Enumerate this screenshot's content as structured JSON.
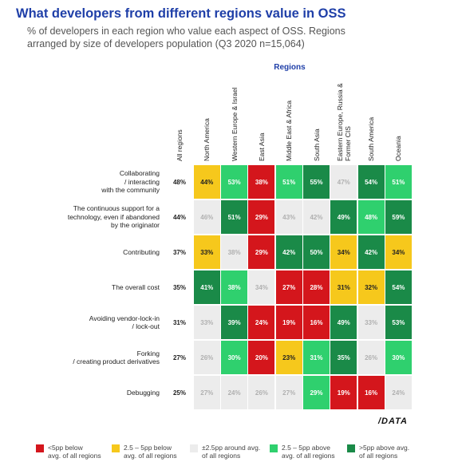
{
  "chart_data": {
    "type": "heatmap",
    "title": "What developers from different regions value in OSS",
    "subtitle": "% of developers in each region who value each aspect of OSS. Regions\narranged by size of developers population (Q3 2020 n=15,064)",
    "x_label": "Regions",
    "categories": [
      "All regions",
      "North America",
      "Western Europe & Israel",
      "East Asia",
      "Middle East & Africa",
      "South Asia",
      "Eastern Europe, Russia &\nFormer CIS",
      "South America",
      "Oceania"
    ],
    "series": [
      {
        "name": "Collaborating\n/ interacting\nwith the community",
        "values": [
          48,
          44,
          53,
          38,
          51,
          55,
          47,
          54,
          51
        ],
        "value_labels": [
          "48%",
          "44%",
          "53%",
          "38%",
          "51%",
          "55%",
          "47%",
          "54%",
          "51%"
        ],
        "colors": [
          "#ffffff",
          "#f6c81c",
          "#2fd06e",
          "#d4161c",
          "#2fd06e",
          "#1a8a48",
          "#ececec",
          "#1a8a48",
          "#2fd06e"
        ]
      },
      {
        "name": "The continuous support for a\ntechnology, even if abandoned\nby the originator",
        "values": [
          44,
          46,
          51,
          29,
          43,
          42,
          49,
          48,
          59
        ],
        "value_labels": [
          "44%",
          "46%",
          "51%",
          "29%",
          "43%",
          "42%",
          "49%",
          "48%",
          "59%"
        ],
        "colors": [
          "#ffffff",
          "#ececec",
          "#1a8a48",
          "#d4161c",
          "#ececec",
          "#ececec",
          "#1a8a48",
          "#2fd06e",
          "#1a8a48"
        ]
      },
      {
        "name": "Contributing",
        "values": [
          37,
          33,
          38,
          29,
          42,
          50,
          34,
          42,
          34
        ],
        "value_labels": [
          "37%",
          "33%",
          "38%",
          "29%",
          "42%",
          "50%",
          "34%",
          "42%",
          "34%"
        ],
        "colors": [
          "#ffffff",
          "#f6c81c",
          "#ececec",
          "#d4161c",
          "#1a8a48",
          "#1a8a48",
          "#f6c81c",
          "#1a8a48",
          "#f6c81c"
        ]
      },
      {
        "name": "The overall cost",
        "values": [
          35,
          41,
          38,
          34,
          27,
          28,
          31,
          32,
          54
        ],
        "value_labels": [
          "35%",
          "41%",
          "38%",
          "34%",
          "27%",
          "28%",
          "31%",
          "32%",
          "54%"
        ],
        "colors": [
          "#ffffff",
          "#1a8a48",
          "#2fd06e",
          "#ececec",
          "#d4161c",
          "#d4161c",
          "#f6c81c",
          "#f6c81c",
          "#1a8a48"
        ]
      },
      {
        "name": "Avoiding vendor-lock-in\n/ lock-out",
        "values": [
          31,
          33,
          39,
          24,
          19,
          16,
          49,
          33,
          53
        ],
        "value_labels": [
          "31%",
          "33%",
          "39%",
          "24%",
          "19%",
          "16%",
          "49%",
          "33%",
          "53%"
        ],
        "colors": [
          "#ffffff",
          "#ececec",
          "#1a8a48",
          "#d4161c",
          "#d4161c",
          "#d4161c",
          "#1a8a48",
          "#ececec",
          "#1a8a48"
        ]
      },
      {
        "name": "Forking\n/ creating product derivatives",
        "values": [
          27,
          26,
          30,
          20,
          23,
          31,
          35,
          26,
          30
        ],
        "value_labels": [
          "27%",
          "26%",
          "30%",
          "20%",
          "23%",
          "31%",
          "35%",
          "26%",
          "30%"
        ],
        "colors": [
          "#ffffff",
          "#ececec",
          "#2fd06e",
          "#d4161c",
          "#f6c81c",
          "#2fd06e",
          "#1a8a48",
          "#ececec",
          "#2fd06e"
        ]
      },
      {
        "name": "Debugging",
        "values": [
          25,
          27,
          24,
          26,
          27,
          29,
          19,
          16,
          24
        ],
        "value_labels": [
          "25%",
          "27%",
          "24%",
          "26%",
          "27%",
          "29%",
          "19%",
          "16%",
          "24%"
        ],
        "colors": [
          "#ffffff",
          "#ececec",
          "#ececec",
          "#ececec",
          "#ececec",
          "#2fd06e",
          "#d4161c",
          "#d4161c",
          "#ececec"
        ]
      }
    ],
    "legend": [
      {
        "name": "<5pp below\navg. of all regions",
        "color": "#d4161c"
      },
      {
        "name": "2.5 – 5pp below\navg. of all regions",
        "color": "#f6c81c"
      },
      {
        "name": "±2.5pp around avg.\nof all regions",
        "color": "#ececec"
      },
      {
        "name": "2.5 – 5pp above\navg. of all regions",
        "color": "#2fd06e"
      },
      {
        "name": ">5pp above avg.\nof all regions",
        "color": "#1a8a48"
      }
    ],
    "logo": "/DATA"
  }
}
